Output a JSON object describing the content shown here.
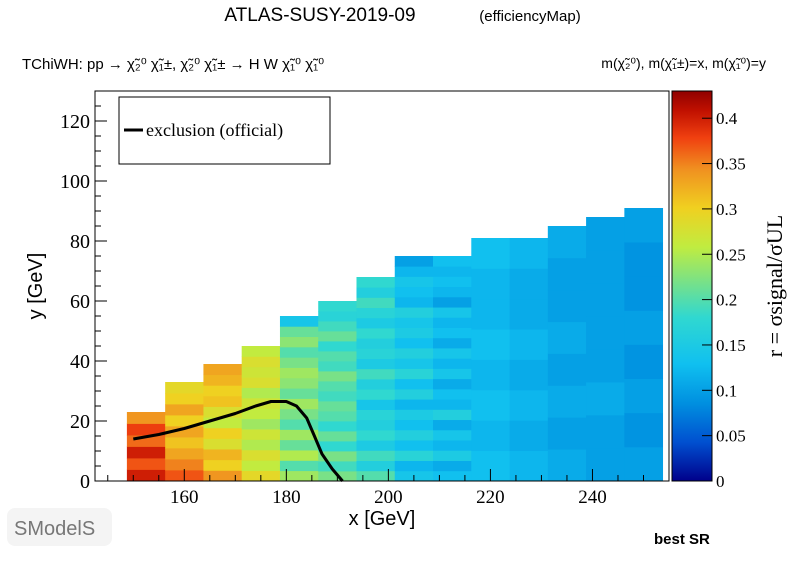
{
  "header": {
    "title": "ATLAS-SUSY-2019-09",
    "subtitle": "(efficiencyMap)",
    "process_label": "TChiWH: pp  → χ̃₂⁰ χ̃₁±, χ̃₂⁰ χ̃₁± → H W  χ̃₁⁰ χ̃₁⁰",
    "mass_label": "m(χ̃₂⁰), m(χ̃₁±)=x, m(χ̃₁⁰)=y"
  },
  "footer": {
    "logo_text": "SModelS",
    "best_sr_label": "best SR"
  },
  "chart_data": {
    "type": "heatmap",
    "xlabel": "x [GeV]",
    "ylabel": "y [GeV]",
    "zlabel": "r = σsignal/σUL",
    "xlim": [
      142.5,
      255
    ],
    "ylim": [
      0,
      130
    ],
    "zlim": [
      0,
      0.43
    ],
    "x_ticks": [
      "160",
      "180",
      "200",
      "220",
      "240"
    ],
    "y_ticks": [
      "0",
      "20",
      "40",
      "60",
      "80",
      "100",
      "120"
    ],
    "z_ticks": [
      "0",
      "0.05",
      "0.1",
      "0.15",
      "0.2",
      "0.25",
      "0.3",
      "0.35",
      "0.4"
    ],
    "legend": {
      "position": "top-left",
      "entries": [
        {
          "label": "exclusion (official)",
          "style": "solid black line"
        }
      ]
    },
    "colormap": [
      "#00008b",
      "#0050d0",
      "#0090e0",
      "#10c0f0",
      "#30d8d0",
      "#70e090",
      "#c0ec40",
      "#f0d020",
      "#f09020",
      "#f04010",
      "#c01000",
      "#900000"
    ],
    "column_centers": [
      152.5,
      160,
      167.5,
      175,
      182.5,
      190,
      197.5,
      205,
      212.5,
      220,
      227.5,
      235,
      242.5,
      250
    ],
    "columns": [
      {
        "x": 152.5,
        "ymax": 23,
        "cells": [
          0.4,
          0.37,
          0.4,
          0.36,
          0.38,
          0.34
        ]
      },
      {
        "x": 160,
        "ymax": 33,
        "cells": [
          0.37,
          0.35,
          0.33,
          0.31,
          0.33,
          0.3,
          0.33,
          0.3,
          0.29
        ]
      },
      {
        "x": 167.5,
        "ymax": 39,
        "cells": [
          0.34,
          0.3,
          0.32,
          0.28,
          0.3,
          0.26,
          0.28,
          0.31,
          0.3,
          0.32,
          0.33
        ]
      },
      {
        "x": 175,
        "ymax": 45,
        "cells": [
          0.29,
          0.26,
          0.28,
          0.25,
          0.27,
          0.24,
          0.26,
          0.27,
          0.25,
          0.28,
          0.27,
          0.28,
          0.26
        ]
      },
      {
        "x": 182.5,
        "ymax": 55,
        "cells": [
          0.24,
          0.2,
          0.25,
          0.21,
          0.24,
          0.2,
          0.22,
          0.24,
          0.21,
          0.23,
          0.24,
          0.22,
          0.2,
          0.23,
          0.21,
          0.14
        ]
      },
      {
        "x": 190,
        "ymax": 60,
        "cells": [
          0.22,
          0.19,
          0.22,
          0.18,
          0.21,
          0.18,
          0.2,
          0.21,
          0.19,
          0.2,
          0.22,
          0.19,
          0.2,
          0.18,
          0.21,
          0.19,
          0.17,
          0.18
        ]
      },
      {
        "x": 197.5,
        "ymax": 68,
        "cells": [
          0.2,
          0.16,
          0.19,
          0.15,
          0.18,
          0.16,
          0.17,
          0.14,
          0.18,
          0.16,
          0.19,
          0.15,
          0.17,
          0.16,
          0.18,
          0.15,
          0.17,
          0.19,
          0.16,
          0.18
        ]
      },
      {
        "x": 205,
        "ymax": 75,
        "cells": [
          0.14,
          0.12,
          0.17,
          0.13,
          0.16,
          0.13,
          0.15,
          0.12,
          0.16,
          0.13,
          0.17,
          0.14,
          0.16,
          0.13,
          0.15,
          0.14,
          0.16,
          0.12,
          0.13,
          0.14,
          0.12,
          0.1
        ]
      },
      {
        "x": 212.5,
        "ymax": 75,
        "cells": [
          0.13,
          0.11,
          0.15,
          0.12,
          0.14,
          0.11,
          0.16,
          0.12,
          0.13,
          0.11,
          0.14,
          0.12,
          0.14,
          0.11,
          0.13,
          0.12,
          0.14,
          0.1,
          0.12,
          0.13,
          0.12,
          0.13
        ]
      },
      {
        "x": 220,
        "ymax": 81,
        "cells": [
          0.13,
          0.12,
          0.13,
          0.12,
          0.13,
          0.12,
          0.12,
          0.13
        ]
      },
      {
        "x": 227.5,
        "ymax": 81,
        "cells": [
          0.12,
          0.11,
          0.12,
          0.11,
          0.12,
          0.11,
          0.11,
          0.12
        ]
      },
      {
        "x": 235,
        "ymax": 85,
        "cells": [
          0.11,
          0.1,
          0.11,
          0.1,
          0.11,
          0.1,
          0.1,
          0.11
        ]
      },
      {
        "x": 242.5,
        "ymax": 88,
        "cells": [
          0.1,
          0.1,
          0.11,
          0.1,
          0.1,
          0.1,
          0.1,
          0.1
        ]
      },
      {
        "x": 250,
        "ymax": 91,
        "cells": [
          0.1,
          0.09,
          0.1,
          0.09,
          0.1,
          0.09,
          0.09,
          0.1
        ]
      }
    ],
    "exclusion_curve": [
      [
        150,
        14
      ],
      [
        155,
        15.5
      ],
      [
        160,
        17.5
      ],
      [
        165,
        20
      ],
      [
        170,
        22.5
      ],
      [
        174,
        25
      ],
      [
        177,
        26.5
      ],
      [
        180,
        26.5
      ],
      [
        182,
        25
      ],
      [
        184,
        21
      ],
      [
        185.5,
        15
      ],
      [
        187,
        9
      ],
      [
        189,
        4
      ],
      [
        191,
        0
      ]
    ]
  }
}
